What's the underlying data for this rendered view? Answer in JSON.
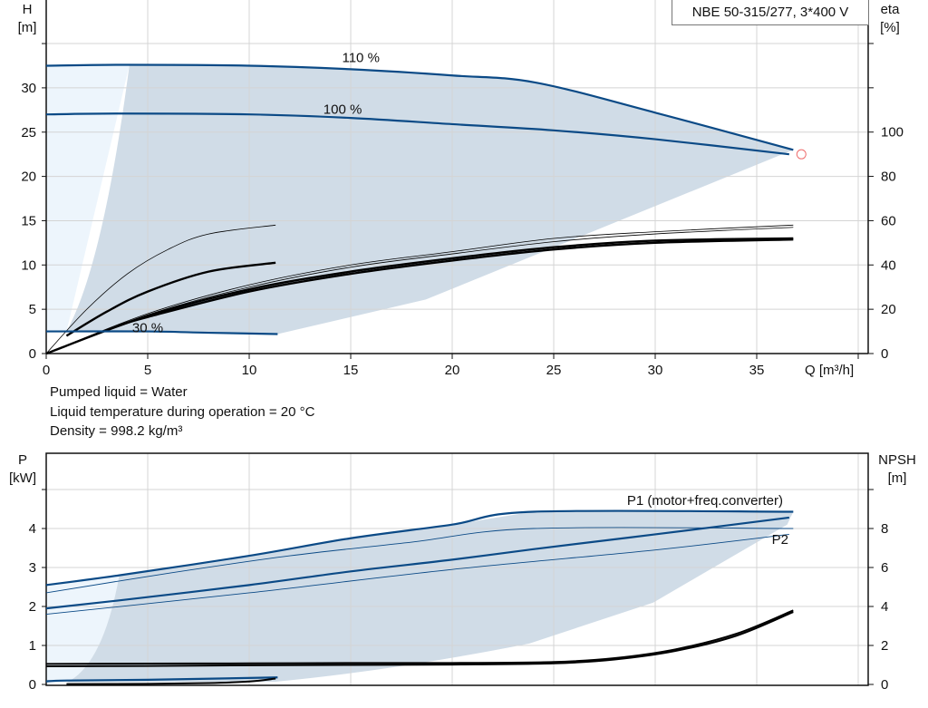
{
  "title": "NBE 50-315/277, 3*400 V",
  "info": [
    "Pumped liquid = Water",
    "Liquid temperature during operation = 20 °C",
    "Density = 998.2 kg/m³"
  ],
  "colors": {
    "curve_blue": "#0b4a86",
    "area_dark": "#d0dce7",
    "area_light": "#edf5fc",
    "grid": "#d4d4d4",
    "duty_point": "#ee6b6b"
  },
  "chart_data": [
    {
      "type": "line",
      "name_id": "head-efficiency",
      "xlabel": "Q [m³/h]",
      "ylabel": "H\n[m]",
      "y2label": "eta\n[%]",
      "xlim": [
        0,
        40
      ],
      "ylim": [
        0,
        40
      ],
      "y2lim": [
        0,
        160
      ],
      "xticks": [
        0,
        5,
        10,
        15,
        20,
        25,
        30,
        35
      ],
      "yticks": [
        0,
        5,
        10,
        15,
        20,
        25,
        30
      ],
      "y2ticks": [
        0,
        20,
        40,
        60,
        80,
        100
      ],
      "grid": true,
      "head_curves": [
        {
          "label": "110 %",
          "points": [
            [
              0,
              32.5
            ],
            [
              4,
              32.6
            ],
            [
              10,
              32.5
            ],
            [
              15,
              32.1
            ],
            [
              20,
              31.4
            ],
            [
              24.1,
              30.6
            ],
            [
              30,
              27.2
            ],
            [
              36.8,
              23.0
            ]
          ]
        },
        {
          "label": "100 %",
          "points": [
            [
              0,
              27.0
            ],
            [
              3.6,
              27.1
            ],
            [
              10,
              27.0
            ],
            [
              15,
              26.6
            ],
            [
              20,
              25.9
            ],
            [
              25,
              25.2
            ],
            [
              30,
              24.2
            ],
            [
              36.6,
              22.5
            ]
          ]
        },
        {
          "label": "30 %",
          "points": [
            [
              0,
              2.5
            ],
            [
              1,
              2.5
            ],
            [
              5,
              2.5
            ],
            [
              8,
              2.35
            ],
            [
              11.4,
              2.2
            ]
          ]
        }
      ],
      "duty_point": [
        37.2,
        22.5
      ],
      "efficiency_curves": [
        {
          "weight": "thin",
          "points": [
            [
              0,
              0
            ],
            [
              2,
              20
            ],
            [
              4,
              36
            ],
            [
              6,
              47
            ],
            [
              8,
              54
            ],
            [
              11.3,
              58
            ]
          ]
        },
        {
          "weight": "thick",
          "points": [
            [
              1,
              8
            ],
            [
              3,
              19
            ],
            [
              5,
              28
            ],
            [
              8,
              37
            ],
            [
              11.3,
              41
            ]
          ]
        },
        {
          "weight": "thin",
          "points": [
            [
              0,
              0
            ],
            [
              5,
              18
            ],
            [
              10,
              31
            ],
            [
              15,
              40
            ],
            [
              20,
              46
            ],
            [
              25,
              52
            ],
            [
              30,
              55
            ],
            [
              36.8,
              58
            ]
          ]
        },
        {
          "weight": "thin",
          "points": [
            [
              0,
              0
            ],
            [
              5,
              17.5
            ],
            [
              10,
              30
            ],
            [
              15,
              39
            ],
            [
              20,
              45
            ],
            [
              25,
              50.5
            ],
            [
              30,
              54
            ],
            [
              36.8,
              57
            ]
          ]
        },
        {
          "weight": "thick",
          "points": [
            [
              0,
              0
            ],
            [
              5,
              17
            ],
            [
              10,
              29
            ],
            [
              15,
              37
            ],
            [
              20,
              43
            ],
            [
              25,
              48
            ],
            [
              30,
              51
            ],
            [
              36.8,
              52
            ]
          ]
        },
        {
          "weight": "thick",
          "points": [
            [
              3.5,
              12.5
            ],
            [
              5,
              16.5
            ],
            [
              10,
              28
            ],
            [
              15,
              36
            ],
            [
              20,
              42
            ],
            [
              25,
              47
            ],
            [
              30,
              50
            ],
            [
              36.8,
              51.5
            ]
          ]
        }
      ]
    },
    {
      "type": "line",
      "name_id": "power-npsh",
      "ylabel": "P\n[kW]",
      "y2label": "NPSH\n[m]",
      "xlim": [
        0,
        40
      ],
      "ylim": [
        0,
        6
      ],
      "y2lim": [
        0,
        12
      ],
      "yticks": [
        0,
        1,
        2,
        3,
        4
      ],
      "y2ticks": [
        0,
        2,
        4,
        6,
        8
      ],
      "grid": true,
      "power_curves": [
        {
          "label": "P1 (motor+freq.converter)",
          "weight": "thick",
          "points": [
            [
              0,
              2.55
            ],
            [
              3.6,
              2.8
            ],
            [
              10,
              3.3
            ],
            [
              15,
              3.75
            ],
            [
              20,
              4.1
            ],
            [
              24,
              4.43
            ],
            [
              36.8,
              4.43
            ]
          ]
        },
        {
          "weight": "thin",
          "points": [
            [
              0,
              2.35
            ],
            [
              6,
              2.85
            ],
            [
              12,
              3.3
            ],
            [
              18,
              3.65
            ],
            [
              24,
              4.0
            ],
            [
              36.8,
              4.0
            ]
          ]
        },
        {
          "weight": "thick",
          "points": [
            [
              0,
              1.95
            ],
            [
              3.5,
              2.15
            ],
            [
              10,
              2.55
            ],
            [
              15,
              2.9
            ],
            [
              20,
              3.2
            ],
            [
              24,
              3.47
            ],
            [
              30,
              3.85
            ],
            [
              36.6,
              4.28
            ]
          ]
        },
        {
          "label": "P2",
          "weight": "thin",
          "points": [
            [
              0,
              1.8
            ],
            [
              10,
              2.35
            ],
            [
              20,
              2.95
            ],
            [
              30,
              3.45
            ],
            [
              36.6,
              3.85
            ]
          ]
        },
        {
          "weight": "thick",
          "points": [
            [
              0,
              0.08
            ],
            [
              1,
              0.1
            ],
            [
              5,
              0.12
            ],
            [
              11.4,
              0.18
            ]
          ]
        }
      ],
      "npsh_curves": [
        {
          "points": [
            [
              0,
              1.05
            ],
            [
              5,
              1.07
            ],
            [
              10,
              1.08
            ],
            [
              15,
              1.1
            ],
            [
              20,
              1.1
            ],
            [
              25,
              1.15
            ],
            [
              28,
              1.35
            ],
            [
              31,
              1.8
            ],
            [
              34,
              2.6
            ],
            [
              36.8,
              3.8
            ]
          ]
        },
        {
          "points": [
            [
              0,
              0.93
            ],
            [
              5,
              0.95
            ],
            [
              10,
              0.98
            ],
            [
              15,
              1.0
            ],
            [
              20,
              1.02
            ],
            [
              25,
              1.08
            ],
            [
              28,
              1.28
            ],
            [
              31,
              1.72
            ],
            [
              34,
              2.5
            ],
            [
              36.8,
              3.72
            ]
          ]
        },
        {
          "points": [
            [
              1,
              0.02
            ],
            [
              5,
              0.03
            ],
            [
              8,
              0.07
            ],
            [
              10,
              0.15
            ],
            [
              11.3,
              0.3
            ]
          ]
        }
      ]
    }
  ]
}
